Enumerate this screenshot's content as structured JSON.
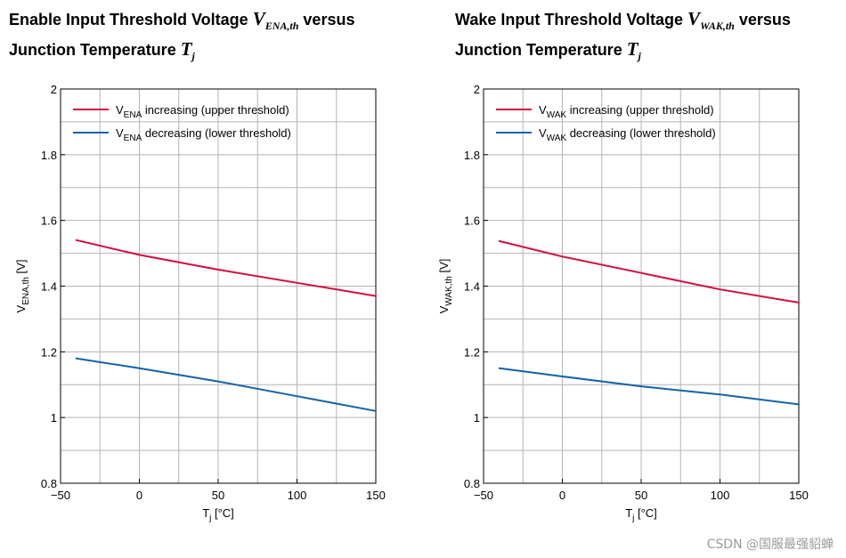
{
  "chart_data": [
    {
      "type": "line",
      "title": {
        "line1_prefix": "Enable Input Threshold Voltage",
        "symbol": "V",
        "symbol_sub": "ENA,th",
        "line1_suffix": "versus",
        "line2_prefix": "Junction Temperature",
        "temp_symbol": "T",
        "temp_sub": "j"
      },
      "xlabel": {
        "main": "T",
        "sub": "j",
        "unit": "[°C]"
      },
      "ylabel": {
        "main": "V",
        "sub": "ENA,th",
        "unit": "[V]"
      },
      "xlim": [
        -50,
        150
      ],
      "ylim": [
        0.8,
        2
      ],
      "xticks": [
        -50,
        0,
        50,
        100,
        150
      ],
      "xtick_labels": [
        "−50",
        "0",
        "50",
        "100",
        "150"
      ],
      "yticks": [
        0.8,
        1,
        1.2,
        1.4,
        1.6,
        1.8,
        2
      ],
      "ytick_labels": [
        "0.8",
        "1",
        "1.2",
        "1.4",
        "1.6",
        "1.8",
        "2"
      ],
      "grid": true,
      "legend_position": "top-left",
      "series": [
        {
          "name": {
            "main": "V",
            "sub": "ENA",
            "text": "increasing (upper threshold)"
          },
          "color": "#d40c3c",
          "x": [
            -40,
            0,
            50,
            100,
            150
          ],
          "y": [
            1.54,
            1.495,
            1.45,
            1.41,
            1.37
          ]
        },
        {
          "name": {
            "main": "V",
            "sub": "ENA",
            "text": "decreasing (lower threshold)"
          },
          "color": "#1462a8",
          "x": [
            -40,
            0,
            50,
            100,
            150
          ],
          "y": [
            1.18,
            1.15,
            1.11,
            1.065,
            1.02
          ]
        }
      ]
    },
    {
      "type": "line",
      "title": {
        "line1_prefix": "Wake Input Threshold Voltage",
        "symbol": "V",
        "symbol_sub": "WAK,th",
        "line1_suffix": "versus",
        "line2_prefix": "Junction Temperature",
        "temp_symbol": "T",
        "temp_sub": "j"
      },
      "xlabel": {
        "main": "T",
        "sub": "j",
        "unit": "[°C]"
      },
      "ylabel": {
        "main": "V",
        "sub": "WAK,th",
        "unit": "[V]"
      },
      "xlim": [
        -50,
        150
      ],
      "ylim": [
        0.8,
        2
      ],
      "xticks": [
        -50,
        0,
        50,
        100,
        150
      ],
      "xtick_labels": [
        "−50",
        "0",
        "50",
        "100",
        "150"
      ],
      "yticks": [
        0.8,
        1,
        1.2,
        1.4,
        1.6,
        1.8,
        2
      ],
      "ytick_labels": [
        "0.8",
        "1",
        "1.2",
        "1.4",
        "1.6",
        "1.8",
        "2"
      ],
      "grid": true,
      "legend_position": "top-left",
      "series": [
        {
          "name": {
            "main": "V",
            "sub": "WAK",
            "text": "increasing (upper threshold)"
          },
          "color": "#d40c3c",
          "x": [
            -40,
            0,
            50,
            100,
            150
          ],
          "y": [
            1.537,
            1.49,
            1.44,
            1.39,
            1.35
          ]
        },
        {
          "name": {
            "main": "V",
            "sub": "WAK",
            "text": "decreasing (lower threshold)"
          },
          "color": "#1462a8",
          "x": [
            -40,
            0,
            50,
            100,
            150
          ],
          "y": [
            1.15,
            1.125,
            1.095,
            1.07,
            1.04
          ]
        }
      ]
    }
  ],
  "watermark": "CSDN @国服最强貂蝉"
}
